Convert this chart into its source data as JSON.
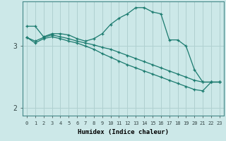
{
  "xlabel": "Humidex (Indice chaleur)",
  "bg_color": "#cce8e8",
  "grid_color": "#b0d0d0",
  "line_color": "#1a7a6e",
  "xlim": [
    -0.5,
    23.5
  ],
  "ylim": [
    1.88,
    3.72
  ],
  "yticks": [
    2,
    3
  ],
  "xticks": [
    0,
    1,
    2,
    3,
    4,
    5,
    6,
    7,
    8,
    9,
    10,
    11,
    12,
    13,
    14,
    15,
    16,
    17,
    18,
    19,
    20,
    21,
    22,
    23
  ],
  "line1_x": [
    0,
    1,
    2,
    3,
    4,
    5,
    6,
    7,
    8,
    9,
    10,
    11,
    12,
    13,
    14,
    15,
    16,
    17,
    18,
    19,
    20,
    21,
    22,
    23
  ],
  "line1_y": [
    3.32,
    3.32,
    3.15,
    3.2,
    3.2,
    3.18,
    3.12,
    3.08,
    3.12,
    3.2,
    3.35,
    3.45,
    3.52,
    3.62,
    3.62,
    3.55,
    3.52,
    3.1,
    3.1,
    3.0,
    2.62,
    2.42,
    2.42,
    2.42
  ],
  "line2_x": [
    0,
    1,
    2,
    3,
    4,
    5,
    6,
    7,
    8,
    9,
    10,
    11,
    12,
    13,
    14,
    15,
    16,
    17,
    18,
    19,
    20,
    21,
    22,
    23
  ],
  "line2_y": [
    3.14,
    3.08,
    3.14,
    3.18,
    3.15,
    3.12,
    3.08,
    3.05,
    3.02,
    2.98,
    2.95,
    2.9,
    2.85,
    2.8,
    2.75,
    2.7,
    2.65,
    2.6,
    2.55,
    2.5,
    2.45,
    2.42,
    2.42,
    2.42
  ],
  "line3_x": [
    0,
    1,
    2,
    3,
    4,
    5,
    6,
    7,
    8,
    9,
    10,
    11,
    12,
    13,
    14,
    15,
    16,
    17,
    18,
    19,
    20,
    21,
    22,
    23
  ],
  "line3_y": [
    3.14,
    3.05,
    3.12,
    3.15,
    3.12,
    3.08,
    3.05,
    3.0,
    2.95,
    2.88,
    2.82,
    2.76,
    2.7,
    2.65,
    2.6,
    2.55,
    2.5,
    2.45,
    2.4,
    2.35,
    2.3,
    2.28,
    2.42,
    2.42
  ]
}
